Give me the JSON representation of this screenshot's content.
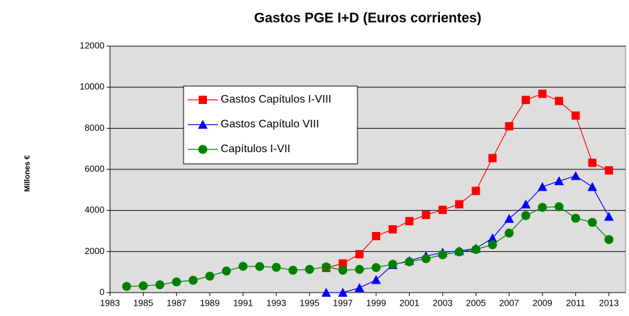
{
  "chart_data": {
    "type": "line",
    "title": "Gastos PGE I+D (Euros corrientes)",
    "y_label": "Millones €",
    "x": [
      1983,
      1984,
      1985,
      1986,
      1987,
      1988,
      1989,
      1990,
      1991,
      1992,
      1993,
      1994,
      1995,
      1996,
      1997,
      1998,
      1999,
      2000,
      2001,
      2002,
      2003,
      2004,
      2005,
      2006,
      2007,
      2008,
      2009,
      2010,
      2011,
      2012,
      2013
    ],
    "xlim": [
      1983,
      2014
    ],
    "xticks": [
      1983,
      1985,
      1987,
      1989,
      1991,
      1993,
      1995,
      1997,
      1999,
      2001,
      2003,
      2005,
      2007,
      2009,
      2011,
      2013
    ],
    "ylim": [
      0,
      12000
    ],
    "yticks": [
      0,
      2000,
      4000,
      6000,
      8000,
      10000,
      12000
    ],
    "grid": true,
    "series": [
      {
        "name": "Gastos Capítulos I-VIII",
        "color": "#ff0000",
        "marker": "square",
        "values": [
          null,
          null,
          null,
          null,
          null,
          null,
          null,
          null,
          null,
          null,
          null,
          null,
          null,
          1200,
          1420,
          1870,
          2750,
          3080,
          3480,
          3780,
          4030,
          4300,
          4950,
          6550,
          8100,
          9380,
          9680,
          9330,
          8620,
          6320,
          5950
        ]
      },
      {
        "name": "Gastos Capítulo VIII",
        "color": "#0000ff",
        "marker": "triangle",
        "values": [
          null,
          null,
          null,
          null,
          null,
          null,
          null,
          null,
          null,
          null,
          null,
          null,
          null,
          0,
          0,
          230,
          620,
          1350,
          1550,
          1780,
          1950,
          2030,
          2150,
          2650,
          3600,
          4300,
          5150,
          5430,
          5680,
          5150,
          3700
        ]
      },
      {
        "name": "Capítulos I-VII",
        "color": "#008000",
        "marker": "circle",
        "values": [
          null,
          300,
          330,
          380,
          520,
          600,
          800,
          1050,
          1280,
          1270,
          1230,
          1090,
          1130,
          1250,
          1090,
          1130,
          1220,
          1380,
          1500,
          1650,
          1840,
          1980,
          2100,
          2330,
          2900,
          3750,
          4150,
          4180,
          3620,
          3420,
          2580
        ]
      }
    ]
  }
}
